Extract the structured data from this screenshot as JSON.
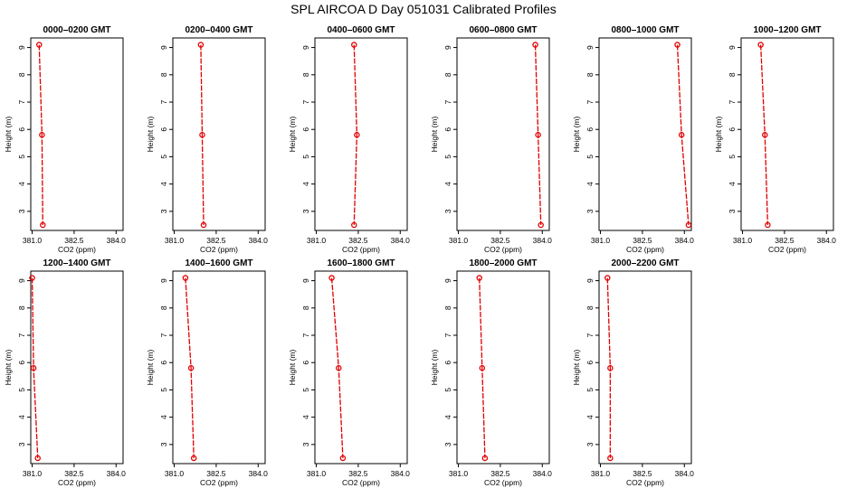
{
  "title": "SPL AIRCOA D  Day 051031  Calibrated Profiles",
  "colors": {
    "line": "#e00000",
    "marker": "#e00000",
    "axis": "#000000"
  },
  "chart_data": [
    {
      "type": "line",
      "title": "0000–0200 GMT",
      "xlabel": "CO2 (ppm)",
      "ylabel": "Height (m)",
      "xlim": [
        381.0,
        384.0
      ],
      "ylim": [
        2.5,
        9.1
      ],
      "xticks": [
        "381.0",
        "382.5",
        "384.0"
      ],
      "yticks": [
        "3",
        "4",
        "5",
        "6",
        "7",
        "8",
        "9"
      ],
      "x": [
        381.25,
        381.35,
        381.38
      ],
      "y": [
        9.1,
        5.8,
        2.5
      ]
    },
    {
      "type": "line",
      "title": "0200–0400 GMT",
      "xlabel": "CO2 (ppm)",
      "ylabel": "Height (m)",
      "xlim": [
        381.0,
        384.0
      ],
      "ylim": [
        2.5,
        9.1
      ],
      "xticks": [
        "381.0",
        "382.5",
        "384.0"
      ],
      "yticks": [
        "3",
        "4",
        "5",
        "6",
        "7",
        "8",
        "9"
      ],
      "x": [
        381.95,
        382.0,
        382.05
      ],
      "y": [
        9.1,
        5.8,
        2.5
      ]
    },
    {
      "type": "line",
      "title": "0400–0600 GMT",
      "xlabel": "CO2 (ppm)",
      "ylabel": "Height (m)",
      "xlim": [
        381.0,
        384.0
      ],
      "ylim": [
        2.5,
        9.1
      ],
      "xticks": [
        "381.0",
        "382.5",
        "384.0"
      ],
      "yticks": [
        "3",
        "4",
        "5",
        "6",
        "7",
        "8",
        "9"
      ],
      "x": [
        382.35,
        382.45,
        382.35
      ],
      "y": [
        9.1,
        5.8,
        2.5
      ]
    },
    {
      "type": "line",
      "title": "0600–0800 GMT",
      "xlabel": "CO2 (ppm)",
      "ylabel": "Height (m)",
      "xlim": [
        381.0,
        384.0
      ],
      "ylim": [
        2.5,
        9.1
      ],
      "xticks": [
        "381.0",
        "382.5",
        "384.0"
      ],
      "yticks": [
        "3",
        "4",
        "5",
        "6",
        "7",
        "8",
        "9"
      ],
      "x": [
        383.75,
        383.85,
        383.95
      ],
      "y": [
        9.1,
        5.8,
        2.5
      ]
    },
    {
      "type": "line",
      "title": "0800–1000 GMT",
      "xlabel": "CO2 (ppm)",
      "ylabel": "Height (m)",
      "xlim": [
        381.0,
        384.0
      ],
      "ylim": [
        2.5,
        9.1
      ],
      "xticks": [
        "381.0",
        "382.5",
        "384.0"
      ],
      "yticks": [
        "3",
        "4",
        "5",
        "6",
        "7",
        "8",
        "9"
      ],
      "x": [
        383.75,
        383.9,
        384.15
      ],
      "y": [
        9.1,
        5.8,
        2.5
      ]
    },
    {
      "type": "line",
      "title": "1000–1200 GMT",
      "xlabel": "CO2 (ppm)",
      "ylabel": "Height (m)",
      "xlim": [
        381.0,
        384.0
      ],
      "ylim": [
        2.5,
        9.1
      ],
      "xticks": [
        "381.0",
        "382.5",
        "384.0"
      ],
      "yticks": [
        "3",
        "4",
        "5",
        "6",
        "7",
        "8",
        "9"
      ],
      "x": [
        381.65,
        381.8,
        381.9
      ],
      "y": [
        9.1,
        5.8,
        2.5
      ]
    },
    {
      "type": "line",
      "title": "1200–1400 GMT",
      "xlabel": "CO2 (ppm)",
      "ylabel": "Height (m)",
      "xlim": [
        381.0,
        384.0
      ],
      "ylim": [
        2.5,
        9.1
      ],
      "xticks": [
        "381.0",
        "382.5",
        "384.0"
      ],
      "yticks": [
        "3",
        "4",
        "5",
        "6",
        "7",
        "8",
        "9"
      ],
      "x": [
        381.0,
        381.05,
        381.2
      ],
      "y": [
        9.1,
        5.8,
        2.5
      ]
    },
    {
      "type": "line",
      "title": "1400–1600 GMT",
      "xlabel": "CO2 (ppm)",
      "ylabel": "Height (m)",
      "xlim": [
        381.0,
        384.0
      ],
      "ylim": [
        2.5,
        9.1
      ],
      "xticks": [
        "381.0",
        "382.5",
        "384.0"
      ],
      "yticks": [
        "3",
        "4",
        "5",
        "6",
        "7",
        "8",
        "9"
      ],
      "x": [
        381.4,
        381.6,
        381.7
      ],
      "y": [
        9.1,
        5.8,
        2.5
      ]
    },
    {
      "type": "line",
      "title": "1600–1800 GMT",
      "xlabel": "CO2 (ppm)",
      "ylabel": "Height (m)",
      "xlim": [
        381.0,
        384.0
      ],
      "ylim": [
        2.5,
        9.1
      ],
      "xticks": [
        "381.0",
        "382.5",
        "384.0"
      ],
      "yticks": [
        "3",
        "4",
        "5",
        "6",
        "7",
        "8",
        "9"
      ],
      "x": [
        381.55,
        381.8,
        381.95
      ],
      "y": [
        9.1,
        5.8,
        2.5
      ]
    },
    {
      "type": "line",
      "title": "1800–2000 GMT",
      "xlabel": "CO2 (ppm)",
      "ylabel": "Height (m)",
      "xlim": [
        381.0,
        384.0
      ],
      "ylim": [
        2.5,
        9.1
      ],
      "xticks": [
        "381.0",
        "382.5",
        "384.0"
      ],
      "yticks": [
        "3",
        "4",
        "5",
        "6",
        "7",
        "8",
        "9"
      ],
      "x": [
        381.75,
        381.85,
        381.95
      ],
      "y": [
        9.1,
        5.8,
        2.5
      ]
    },
    {
      "type": "line",
      "title": "2000–2200 GMT",
      "xlabel": "CO2 (ppm)",
      "ylabel": "Height (m)",
      "xlim": [
        381.0,
        384.0
      ],
      "ylim": [
        2.5,
        9.1
      ],
      "xticks": [
        "381.0",
        "382.5",
        "384.0"
      ],
      "yticks": [
        "3",
        "4",
        "5",
        "6",
        "7",
        "8",
        "9"
      ],
      "x": [
        381.25,
        381.35,
        381.35
      ],
      "y": [
        9.1,
        5.8,
        2.5
      ]
    }
  ]
}
